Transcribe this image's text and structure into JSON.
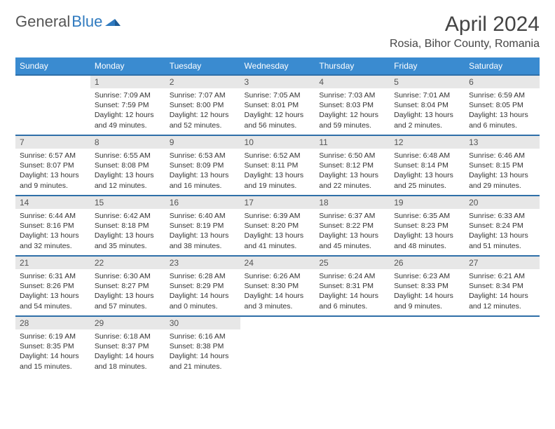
{
  "logo": {
    "part1": "General",
    "part2": "Blue"
  },
  "title": "April 2024",
  "location": "Rosia, Bihor County, Romania",
  "colors": {
    "header_bg": "#3a8bd0",
    "header_text": "#ffffff",
    "row_divider": "#2f6fa8",
    "daynum_bg": "#e7e7e7",
    "text": "#333333",
    "logo_gray": "#555555",
    "logo_blue": "#2f7abf"
  },
  "weekdays": [
    "Sunday",
    "Monday",
    "Tuesday",
    "Wednesday",
    "Thursday",
    "Friday",
    "Saturday"
  ],
  "first_weekday_index": 1,
  "days": [
    {
      "n": 1,
      "sunrise": "7:09 AM",
      "sunset": "7:59 PM",
      "daylight": "12 hours and 49 minutes."
    },
    {
      "n": 2,
      "sunrise": "7:07 AM",
      "sunset": "8:00 PM",
      "daylight": "12 hours and 52 minutes."
    },
    {
      "n": 3,
      "sunrise": "7:05 AM",
      "sunset": "8:01 PM",
      "daylight": "12 hours and 56 minutes."
    },
    {
      "n": 4,
      "sunrise": "7:03 AM",
      "sunset": "8:03 PM",
      "daylight": "12 hours and 59 minutes."
    },
    {
      "n": 5,
      "sunrise": "7:01 AM",
      "sunset": "8:04 PM",
      "daylight": "13 hours and 2 minutes."
    },
    {
      "n": 6,
      "sunrise": "6:59 AM",
      "sunset": "8:05 PM",
      "daylight": "13 hours and 6 minutes."
    },
    {
      "n": 7,
      "sunrise": "6:57 AM",
      "sunset": "8:07 PM",
      "daylight": "13 hours and 9 minutes."
    },
    {
      "n": 8,
      "sunrise": "6:55 AM",
      "sunset": "8:08 PM",
      "daylight": "13 hours and 12 minutes."
    },
    {
      "n": 9,
      "sunrise": "6:53 AM",
      "sunset": "8:09 PM",
      "daylight": "13 hours and 16 minutes."
    },
    {
      "n": 10,
      "sunrise": "6:52 AM",
      "sunset": "8:11 PM",
      "daylight": "13 hours and 19 minutes."
    },
    {
      "n": 11,
      "sunrise": "6:50 AM",
      "sunset": "8:12 PM",
      "daylight": "13 hours and 22 minutes."
    },
    {
      "n": 12,
      "sunrise": "6:48 AM",
      "sunset": "8:14 PM",
      "daylight": "13 hours and 25 minutes."
    },
    {
      "n": 13,
      "sunrise": "6:46 AM",
      "sunset": "8:15 PM",
      "daylight": "13 hours and 29 minutes."
    },
    {
      "n": 14,
      "sunrise": "6:44 AM",
      "sunset": "8:16 PM",
      "daylight": "13 hours and 32 minutes."
    },
    {
      "n": 15,
      "sunrise": "6:42 AM",
      "sunset": "8:18 PM",
      "daylight": "13 hours and 35 minutes."
    },
    {
      "n": 16,
      "sunrise": "6:40 AM",
      "sunset": "8:19 PM",
      "daylight": "13 hours and 38 minutes."
    },
    {
      "n": 17,
      "sunrise": "6:39 AM",
      "sunset": "8:20 PM",
      "daylight": "13 hours and 41 minutes."
    },
    {
      "n": 18,
      "sunrise": "6:37 AM",
      "sunset": "8:22 PM",
      "daylight": "13 hours and 45 minutes."
    },
    {
      "n": 19,
      "sunrise": "6:35 AM",
      "sunset": "8:23 PM",
      "daylight": "13 hours and 48 minutes."
    },
    {
      "n": 20,
      "sunrise": "6:33 AM",
      "sunset": "8:24 PM",
      "daylight": "13 hours and 51 minutes."
    },
    {
      "n": 21,
      "sunrise": "6:31 AM",
      "sunset": "8:26 PM",
      "daylight": "13 hours and 54 minutes."
    },
    {
      "n": 22,
      "sunrise": "6:30 AM",
      "sunset": "8:27 PM",
      "daylight": "13 hours and 57 minutes."
    },
    {
      "n": 23,
      "sunrise": "6:28 AM",
      "sunset": "8:29 PM",
      "daylight": "14 hours and 0 minutes."
    },
    {
      "n": 24,
      "sunrise": "6:26 AM",
      "sunset": "8:30 PM",
      "daylight": "14 hours and 3 minutes."
    },
    {
      "n": 25,
      "sunrise": "6:24 AM",
      "sunset": "8:31 PM",
      "daylight": "14 hours and 6 minutes."
    },
    {
      "n": 26,
      "sunrise": "6:23 AM",
      "sunset": "8:33 PM",
      "daylight": "14 hours and 9 minutes."
    },
    {
      "n": 27,
      "sunrise": "6:21 AM",
      "sunset": "8:34 PM",
      "daylight": "14 hours and 12 minutes."
    },
    {
      "n": 28,
      "sunrise": "6:19 AM",
      "sunset": "8:35 PM",
      "daylight": "14 hours and 15 minutes."
    },
    {
      "n": 29,
      "sunrise": "6:18 AM",
      "sunset": "8:37 PM",
      "daylight": "14 hours and 18 minutes."
    },
    {
      "n": 30,
      "sunrise": "6:16 AM",
      "sunset": "8:38 PM",
      "daylight": "14 hours and 21 minutes."
    }
  ],
  "labels": {
    "sunrise_prefix": "Sunrise: ",
    "sunset_prefix": "Sunset: ",
    "daylight_prefix": "Daylight: "
  }
}
